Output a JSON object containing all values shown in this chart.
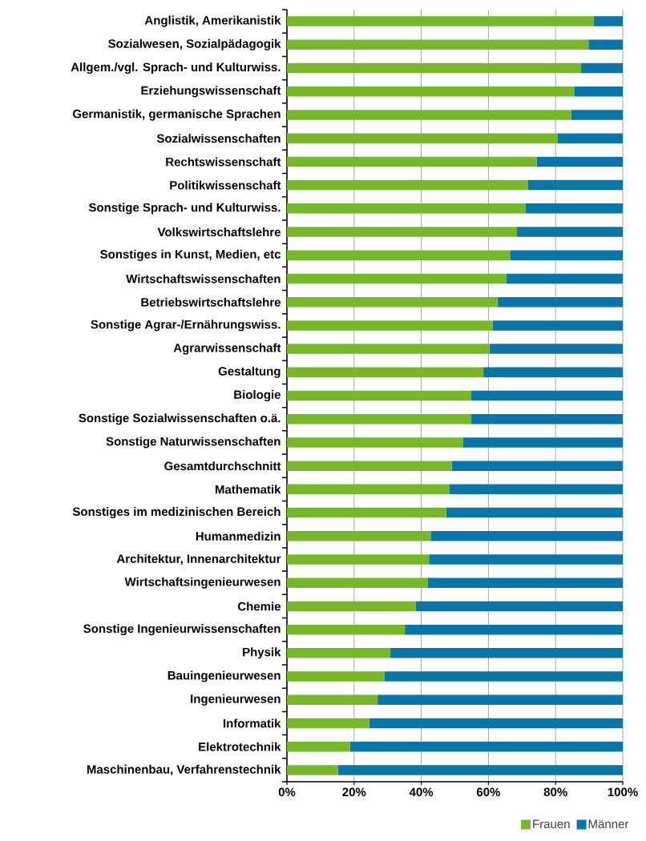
{
  "chart_data": {
    "type": "bar",
    "orientation": "horizontal",
    "stacked": true,
    "categories": [
      "Anglistik, Amerikanistik",
      "Sozialwesen, Sozialpädagogik",
      "Allgem./vgl. Sprach- und Kulturwiss.",
      "Erziehungswissenschaft",
      "Germanistik, germanische Sprachen",
      "Sozialwissenschaften",
      "Rechtswissenschaft",
      "Politikwissenschaft",
      "Sonstige Sprach- und Kulturwiss.",
      "Volkswirtschaftslehre",
      "Sonstiges in Kunst, Medien, etc",
      "Wirtschaftswissenschaften",
      "Betriebswirtschaftslehre",
      "Sonstige Agrar-/Ernährungswiss.",
      "Agrarwissenschaft",
      "Gestaltung",
      "Biologie",
      "Sonstige Sozialwissenschaften o.ä.",
      "Sonstige Naturwissenschaften",
      "Gesamtdurchschnitt",
      "Mathematik",
      "Sonstiges im medizinischen Bereich",
      "Humanmedizin",
      "Architektur, Innenarchitektur",
      "Wirtschaftsingenieurwesen",
      "Chemie",
      "Sonstige Ingenieurwissenschaften",
      "Physik",
      "Bauingenieurwesen",
      "Ingenieurwesen",
      "Informatik",
      "Elektrotechnik",
      "Maschinenbau, Verfahrenstechnik"
    ],
    "series": [
      {
        "name": "Frauen",
        "color": "#76b82a",
        "values": [
          91.3,
          89.8,
          87.6,
          85.5,
          84.6,
          80.5,
          74.4,
          71.7,
          71.1,
          68.5,
          66.4,
          65.4,
          62.7,
          61.2,
          60.3,
          58.5,
          54.9,
          54.9,
          52.5,
          49.1,
          48.3,
          47.4,
          42.8,
          42.3,
          42.0,
          38.4,
          35.1,
          30.8,
          29.1,
          27.0,
          24.5,
          18.8,
          15.2
        ]
      },
      {
        "name": "Männer",
        "color": "#0a76a8",
        "values": [
          8.7,
          10.2,
          12.4,
          14.5,
          15.4,
          19.5,
          25.6,
          28.3,
          28.9,
          31.5,
          33.6,
          34.6,
          37.3,
          38.8,
          39.7,
          41.5,
          45.1,
          45.1,
          47.5,
          50.9,
          51.7,
          52.6,
          57.2,
          57.7,
          58.0,
          61.6,
          64.9,
          69.2,
          70.9,
          73.0,
          75.5,
          81.2,
          84.8
        ]
      }
    ],
    "xlim": [
      0,
      100
    ],
    "xticks": [
      {
        "value": 0,
        "label": "0%"
      },
      {
        "value": 20,
        "label": "20%"
      },
      {
        "value": 40,
        "label": "40%"
      },
      {
        "value": 60,
        "label": "60%"
      },
      {
        "value": 80,
        "label": "80%"
      },
      {
        "value": 100,
        "label": "100%"
      }
    ],
    "grid": "x",
    "legend": "bottom right"
  }
}
